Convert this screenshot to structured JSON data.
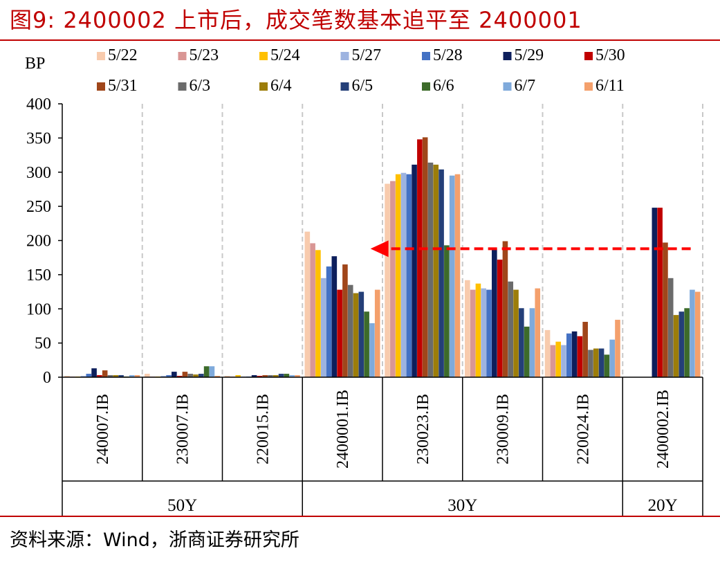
{
  "title": "图9:  2400002 上市后，成交笔数基本追平至 2400001",
  "source": "资料来源：Wind，浙商证券研究所",
  "chart_data": {
    "type": "bar",
    "ylabel": "BP",
    "ylim": [
      0,
      400
    ],
    "yticks": [
      0,
      50,
      100,
      150,
      200,
      250,
      300,
      350,
      400
    ],
    "categories": [
      "240007.IB",
      "230007.IB",
      "220015.IB",
      "2400001.IB",
      "230023.IB",
      "230009.IB",
      "220024.IB",
      "2400002.IB"
    ],
    "groups": [
      {
        "label": "50Y",
        "span": 3
      },
      {
        "label": "30Y",
        "span": 4
      },
      {
        "label": "20Y",
        "span": 1
      }
    ],
    "grid": "vertical-dashed",
    "legend_position": "top",
    "series": [
      {
        "name": "5/22",
        "color": "#f8cbad",
        "values": [
          2,
          5,
          2,
          213,
          283,
          142,
          69,
          0
        ]
      },
      {
        "name": "5/23",
        "color": "#d99694",
        "values": [
          1,
          1,
          1,
          196,
          287,
          128,
          47,
          0
        ]
      },
      {
        "name": "5/24",
        "color": "#ffc000",
        "values": [
          1,
          1,
          3,
          186,
          297,
          137,
          52,
          0
        ]
      },
      {
        "name": "5/27",
        "color": "#9db3e0",
        "values": [
          2,
          2,
          1,
          145,
          299,
          130,
          47,
          0
        ]
      },
      {
        "name": "5/28",
        "color": "#4472c4",
        "values": [
          5,
          3,
          1,
          162,
          297,
          128,
          64,
          0
        ]
      },
      {
        "name": "5/29",
        "color": "#0d1f5c",
        "values": [
          13,
          8,
          3,
          177,
          311,
          188,
          67,
          248
        ]
      },
      {
        "name": "5/30",
        "color": "#c00000",
        "values": [
          3,
          2,
          2,
          128,
          348,
          172,
          60,
          248
        ]
      },
      {
        "name": "5/31",
        "color": "#a0461a",
        "values": [
          10,
          8,
          3,
          165,
          351,
          199,
          81,
          197
        ]
      },
      {
        "name": "6/3",
        "color": "#6b6b6b",
        "values": [
          3,
          5,
          3,
          135,
          314,
          140,
          40,
          145
        ]
      },
      {
        "name": "6/4",
        "color": "#9c7d0a",
        "values": [
          3,
          4,
          3,
          123,
          311,
          128,
          42,
          91
        ]
      },
      {
        "name": "6/5",
        "color": "#243f78",
        "values": [
          3,
          5,
          5,
          125,
          304,
          101,
          42,
          96
        ]
      },
      {
        "name": "6/6",
        "color": "#3d6b2a",
        "values": [
          1,
          16,
          5,
          96,
          193,
          74,
          33,
          101
        ]
      },
      {
        "name": "6/7",
        "color": "#7faadb",
        "values": [
          3,
          16,
          3,
          79,
          295,
          101,
          55,
          128
        ]
      },
      {
        "name": "6/11",
        "color": "#f4a06c",
        "values": [
          3,
          2,
          3,
          128,
          297,
          130,
          84,
          125
        ]
      }
    ],
    "annotation": {
      "type": "arrow",
      "color": "#ff0000",
      "style": "dashed",
      "from_category": "2400002.IB",
      "to_category": "2400001.IB",
      "value": 188
    }
  }
}
